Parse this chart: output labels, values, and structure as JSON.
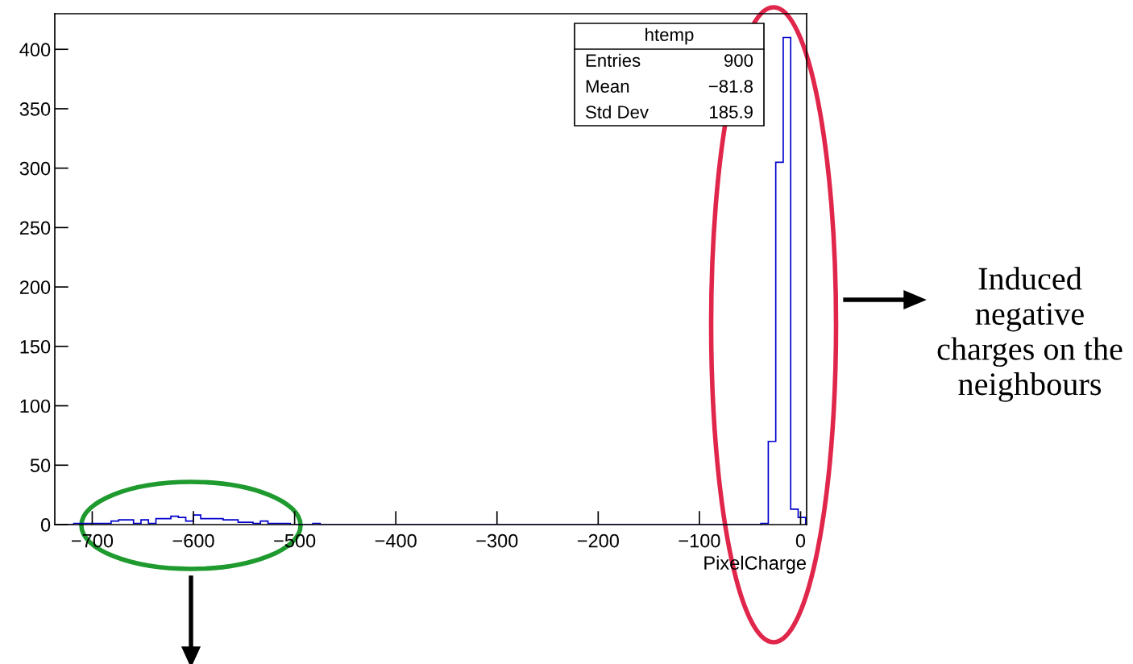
{
  "chart_data": {
    "type": "histogram",
    "xlabel": "PixelCharge",
    "xlim": [
      -737,
      6
    ],
    "ylim": [
      0,
      430
    ],
    "xticks": [
      {
        "value": -700,
        "label": "−700"
      },
      {
        "value": -600,
        "label": "−600"
      },
      {
        "value": -500,
        "label": "−500"
      },
      {
        "value": -400,
        "label": "−400"
      },
      {
        "value": -300,
        "label": "−300"
      },
      {
        "value": -200,
        "label": "−200"
      },
      {
        "value": -100,
        "label": "−100"
      },
      0
    ],
    "yticks": [
      0,
      50,
      100,
      150,
      200,
      250,
      300,
      350,
      400
    ],
    "bins": [
      -733,
      -725.62,
      -718.24,
      -710.86,
      -703.48,
      -696.1,
      -688.72,
      -681.34,
      -673.96,
      -666.58,
      -659.2,
      -651.82,
      -644.44,
      -637.06,
      -629.68,
      -622.3,
      -614.92,
      -607.54,
      -600.16,
      -592.78,
      -585.4,
      -578.02,
      -570.64,
      -563.26,
      -555.88,
      -548.5,
      -541.12,
      -533.74,
      -526.36,
      -518.98,
      -511.6,
      -504.22,
      -496.84,
      -489.46,
      -482.08,
      -474.7,
      -467.32,
      -459.94,
      -452.56,
      -445.18,
      -437.8,
      -430.42,
      -423.04,
      -415.66,
      -408.28,
      -400.9,
      -393.52,
      -386.14,
      -378.76,
      -371.38,
      -364,
      -356.62,
      -349.24,
      -341.86,
      -334.48,
      -327.1,
      -319.72,
      -312.34,
      -304.96,
      -297.58,
      -290.2,
      -282.82,
      -275.44,
      -268.06,
      -260.68,
      -253.3,
      -245.92,
      -238.54,
      -231.16,
      -223.78,
      -216.4,
      -209.02,
      -201.64,
      -194.26,
      -186.88,
      -179.5,
      -172.12,
      -164.74,
      -157.36,
      -149.98,
      -142.6,
      -135.22,
      -127.84,
      -120.46,
      -113.08,
      -105.7,
      -98.32,
      -90.94,
      -83.56,
      -76.18,
      -68.8,
      -61.42,
      -54.04,
      -46.66,
      -39.28,
      -31.9,
      -24.52,
      -17.14,
      -9.76,
      -2.38,
      5
    ],
    "values": [
      0,
      0,
      1,
      1,
      1,
      1,
      1,
      3,
      4,
      4,
      1,
      4,
      1,
      5,
      5,
      7,
      6,
      3,
      8,
      5,
      5,
      5,
      4,
      4,
      2,
      2,
      1,
      3,
      1,
      1,
      1,
      0,
      0,
      0,
      1,
      0,
      0,
      0,
      0,
      0,
      0,
      0,
      0,
      0,
      0,
      0,
      0,
      0,
      0,
      0,
      0,
      0,
      0,
      0,
      0,
      0,
      0,
      0,
      0,
      0,
      0,
      0,
      0,
      0,
      0,
      0,
      0,
      0,
      0,
      0,
      0,
      0,
      0,
      0,
      0,
      0,
      0,
      0,
      0,
      0,
      0,
      0,
      0,
      0,
      0,
      0,
      0,
      0,
      0,
      0,
      0,
      0,
      0,
      0,
      1,
      70,
      305,
      410,
      13,
      6
    ],
    "color": "#0000cc",
    "grid": false,
    "annotations": [
      "htemp",
      "Entries",
      "900",
      "Mean",
      "−81.8",
      "Std Dev",
      "185.9",
      "Induced negative charges on the neighbours"
    ]
  }
}
